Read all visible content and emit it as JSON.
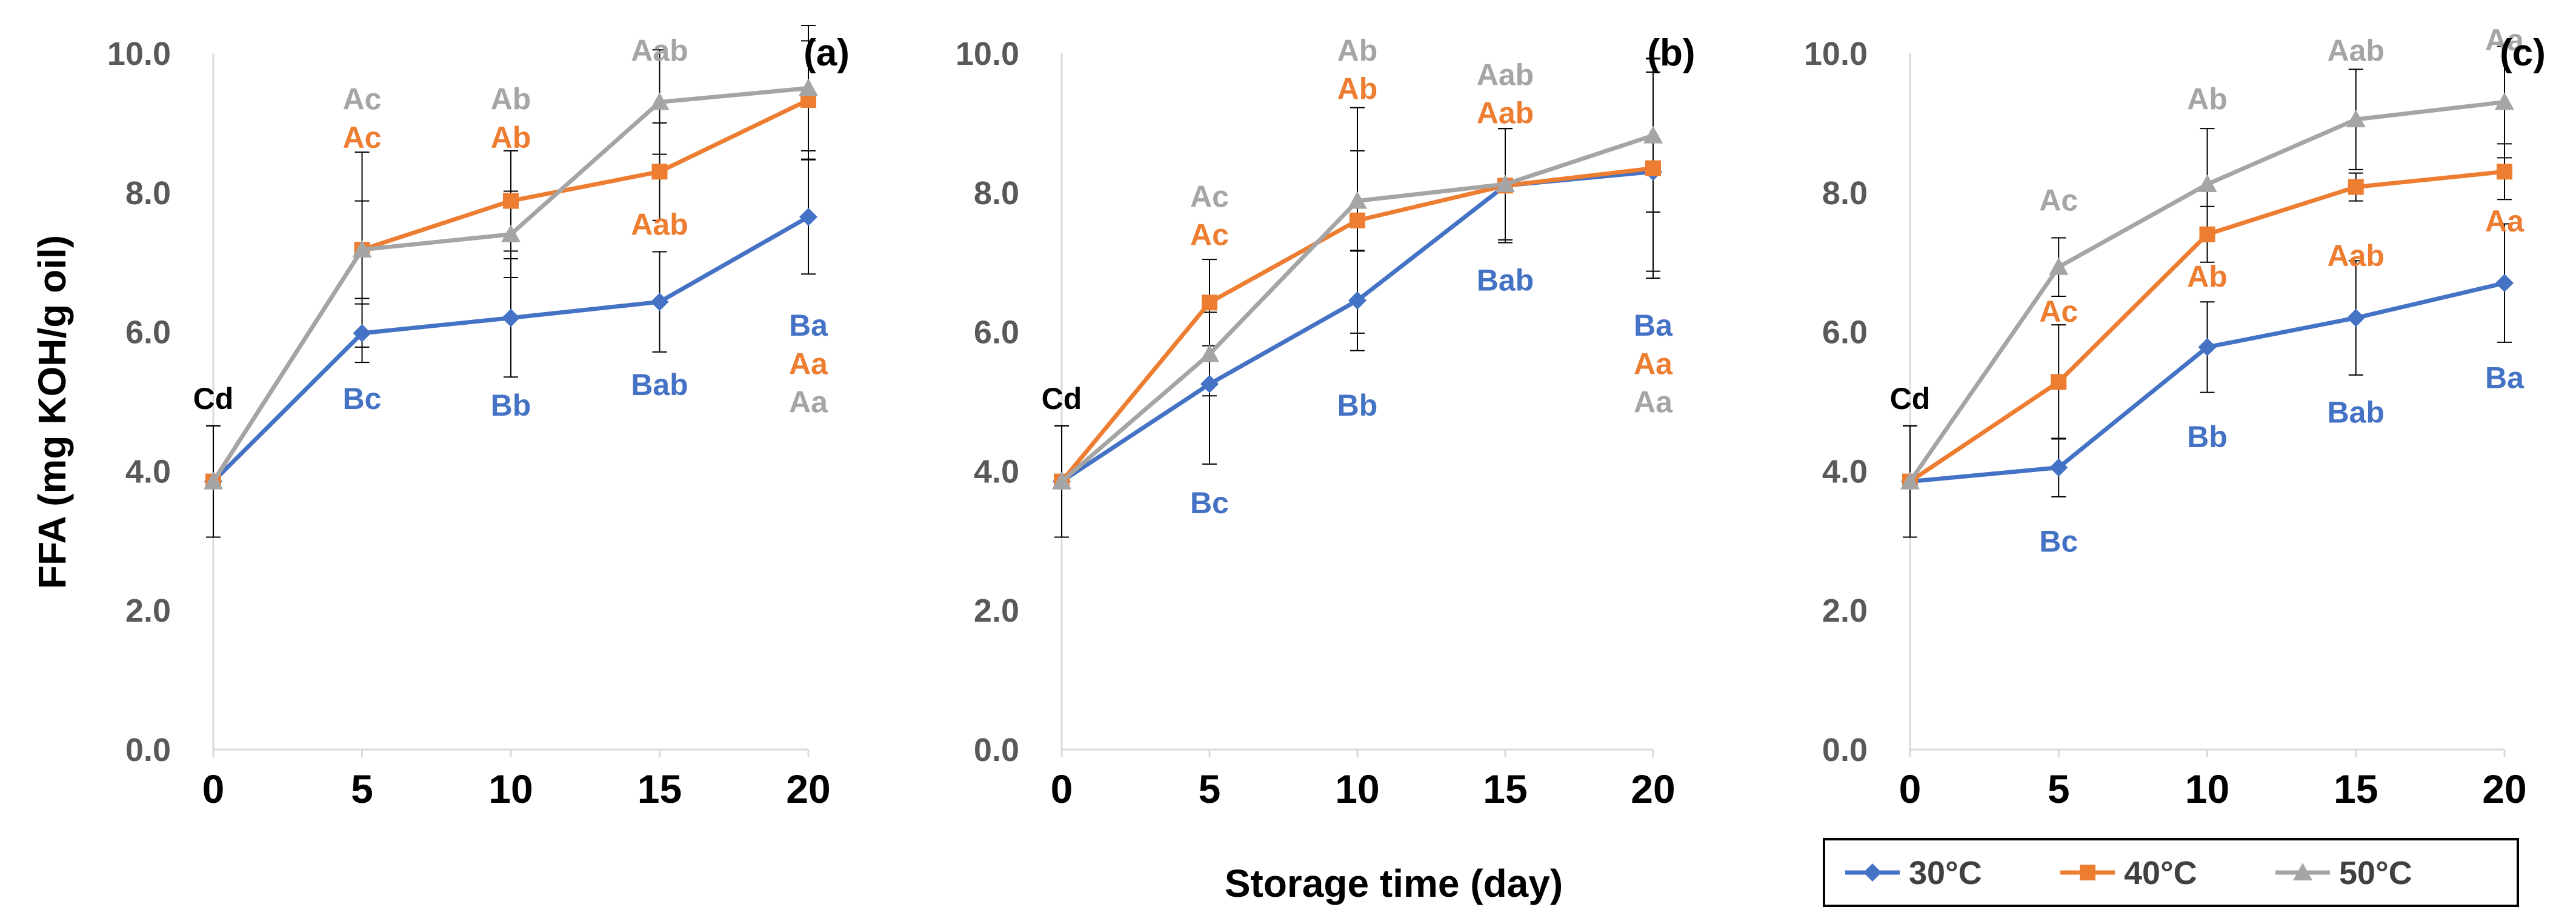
{
  "chart_data": {
    "type": "line",
    "ylabel": "FFA (mg KOH/g oil)",
    "xlabel": "Storage time (day)",
    "ylim": [
      0,
      10
    ],
    "y_ticks": [
      "0.0",
      "2.0",
      "4.0",
      "6.0",
      "8.0",
      "10.0"
    ],
    "x": [
      0,
      5,
      10,
      15,
      20
    ],
    "x_ticks": [
      "0",
      "5",
      "10",
      "15",
      "20"
    ],
    "grid": false,
    "legend_position": "bottom-right",
    "legend": [
      {
        "name": "30°C",
        "color": "#4472C4",
        "marker": "diamond"
      },
      {
        "name": "40°C",
        "color": "#ED7D31",
        "marker": "square"
      },
      {
        "name": "50°C",
        "color": "#A5A5A5",
        "marker": "triangle"
      }
    ],
    "panels": [
      {
        "label": "(a)",
        "series": [
          {
            "name": "30°C",
            "values": [
              3.85,
              5.98,
              6.2,
              6.43,
              7.65
            ],
            "errors": [
              0.8,
              0.42,
              0.85,
              0.72,
              0.82
            ]
          },
          {
            "name": "40°C",
            "values": [
              3.85,
              7.18,
              7.88,
              8.3,
              9.33
            ],
            "errors": [
              0.8,
              1.4,
              0.72,
              0.7,
              0.85
            ]
          },
          {
            "name": "50°C",
            "values": [
              3.85,
              7.18,
              7.4,
              9.3,
              9.5
            ],
            "errors": [
              0.8,
              0.7,
              0.62,
              0.75,
              0.9
            ]
          }
        ],
        "annotations": [
          {
            "x": 0,
            "y": 5.05,
            "text": "Cd",
            "color": "#000000"
          },
          {
            "x": 5,
            "y": 9.35,
            "text": "Ac",
            "color": "#A5A5A5"
          },
          {
            "x": 5,
            "y": 8.8,
            "text": "Ac",
            "color": "#ED7D31"
          },
          {
            "x": 5,
            "y": 5.05,
            "text": "Bc",
            "color": "#4472C4"
          },
          {
            "x": 10,
            "y": 9.35,
            "text": "Ab",
            "color": "#A5A5A5"
          },
          {
            "x": 10,
            "y": 8.8,
            "text": "Ab",
            "color": "#ED7D31"
          },
          {
            "x": 10,
            "y": 4.95,
            "text": "Bb",
            "color": "#4472C4"
          },
          {
            "x": 15,
            "y": 10.05,
            "text": "Aab",
            "color": "#A5A5A5"
          },
          {
            "x": 15,
            "y": 7.55,
            "text": "Aab",
            "color": "#ED7D31"
          },
          {
            "x": 15,
            "y": 5.25,
            "text": "Bab",
            "color": "#4472C4"
          },
          {
            "x": 20,
            "y": 6.1,
            "text": "Ba",
            "color": "#4472C4"
          },
          {
            "x": 20,
            "y": 5.55,
            "text": "Aa",
            "color": "#ED7D31"
          },
          {
            "x": 20,
            "y": 5.0,
            "text": "Aa",
            "color": "#A5A5A5"
          }
        ]
      },
      {
        "label": "(b)",
        "series": [
          {
            "name": "30°C",
            "values": [
              3.85,
              5.25,
              6.45,
              8.1,
              8.3
            ],
            "errors": [
              0.8,
              1.15,
              0.72,
              0.82,
              1.43
            ]
          },
          {
            "name": "40°C",
            "values": [
              3.85,
              6.42,
              7.6,
              8.1,
              8.35
            ],
            "errors": [
              0.8,
              0.62,
              1.62,
              0.82,
              1.58
            ]
          },
          {
            "name": "50°C",
            "values": [
              3.85,
              5.68,
              7.88,
              8.12,
              8.82
            ],
            "errors": [
              0.8,
              0.6,
              0.72,
              0.8,
              1.1
            ]
          }
        ],
        "annotations": [
          {
            "x": 0,
            "y": 5.05,
            "text": "Cd",
            "color": "#000000"
          },
          {
            "x": 5,
            "y": 7.95,
            "text": "Ac",
            "color": "#A5A5A5"
          },
          {
            "x": 5,
            "y": 7.4,
            "text": "Ac",
            "color": "#ED7D31"
          },
          {
            "x": 5,
            "y": 3.55,
            "text": "Bc",
            "color": "#4472C4"
          },
          {
            "x": 10,
            "y": 10.05,
            "text": "Ab",
            "color": "#A5A5A5"
          },
          {
            "x": 10,
            "y": 9.5,
            "text": "Ab",
            "color": "#ED7D31"
          },
          {
            "x": 10,
            "y": 4.95,
            "text": "Bb",
            "color": "#4472C4"
          },
          {
            "x": 15,
            "y": 9.7,
            "text": "Aab",
            "color": "#A5A5A5"
          },
          {
            "x": 15,
            "y": 9.15,
            "text": "Aab",
            "color": "#ED7D31"
          },
          {
            "x": 15,
            "y": 6.75,
            "text": "Bab",
            "color": "#4472C4"
          },
          {
            "x": 20,
            "y": 6.1,
            "text": "Ba",
            "color": "#4472C4"
          },
          {
            "x": 20,
            "y": 5.55,
            "text": "Aa",
            "color": "#ED7D31"
          },
          {
            "x": 20,
            "y": 5.0,
            "text": "Aa",
            "color": "#A5A5A5"
          }
        ]
      },
      {
        "label": "(c)",
        "series": [
          {
            "name": "30°C",
            "values": [
              3.85,
              4.05,
              5.78,
              6.2,
              6.7
            ],
            "errors": [
              0.8,
              0.42,
              0.65,
              0.82,
              0.85
            ]
          },
          {
            "name": "40°C",
            "values": [
              3.85,
              5.28,
              7.4,
              8.08,
              8.3
            ],
            "errors": [
              0.8,
              0.82,
              0.4,
              0.2,
              0.4
            ]
          },
          {
            "name": "50°C",
            "values": [
              3.85,
              6.93,
              8.12,
              9.05,
              9.3
            ],
            "errors": [
              0.8,
              0.42,
              0.8,
              0.72,
              0.8
            ]
          }
        ],
        "annotations": [
          {
            "x": 0,
            "y": 5.05,
            "text": "Cd",
            "color": "#000000"
          },
          {
            "x": 5,
            "y": 7.9,
            "text": "Ac",
            "color": "#A5A5A5"
          },
          {
            "x": 5,
            "y": 6.3,
            "text": "Ac",
            "color": "#ED7D31"
          },
          {
            "x": 5,
            "y": 3.0,
            "text": "Bc",
            "color": "#4472C4"
          },
          {
            "x": 10,
            "y": 9.35,
            "text": "Ab",
            "color": "#A5A5A5"
          },
          {
            "x": 10,
            "y": 6.8,
            "text": "Ab",
            "color": "#ED7D31"
          },
          {
            "x": 10,
            "y": 4.5,
            "text": "Bb",
            "color": "#4472C4"
          },
          {
            "x": 15,
            "y": 10.05,
            "text": "Aab",
            "color": "#A5A5A5"
          },
          {
            "x": 15,
            "y": 7.1,
            "text": "Aab",
            "color": "#ED7D31"
          },
          {
            "x": 15,
            "y": 4.85,
            "text": "Bab",
            "color": "#4472C4"
          },
          {
            "x": 20,
            "y": 10.2,
            "text": "Aa",
            "color": "#A5A5A5"
          },
          {
            "x": 20,
            "y": 7.6,
            "text": "Aa",
            "color": "#ED7D31"
          },
          {
            "x": 20,
            "y": 5.35,
            "text": "Ba",
            "color": "#4472C4"
          }
        ]
      }
    ]
  }
}
